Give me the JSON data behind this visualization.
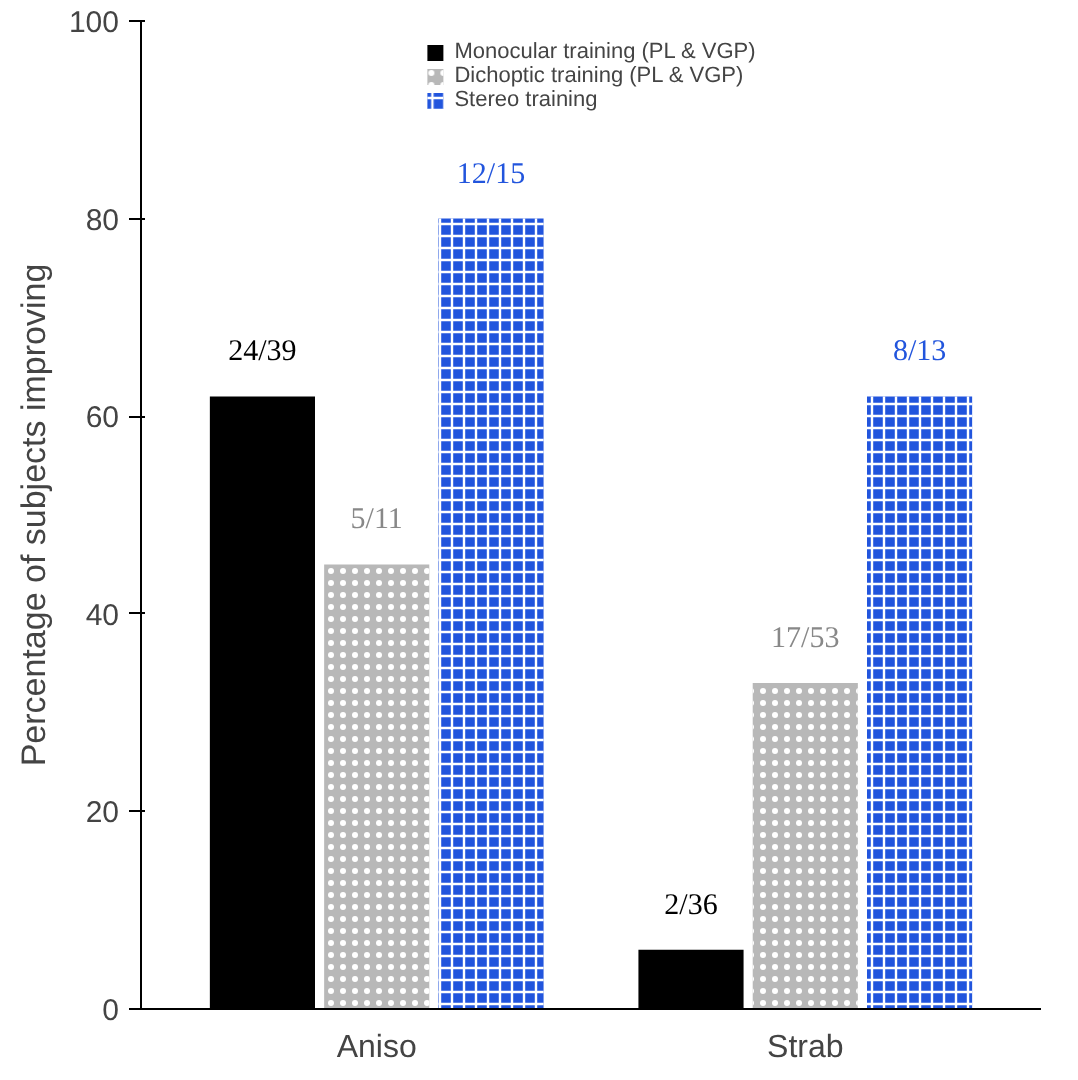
{
  "chart_data": {
    "type": "bar",
    "ylabel": "Percentage of subjects improving",
    "categories": [
      "Aniso",
      "Strab"
    ],
    "series": [
      {
        "name": "Monocular training (PL & VGP)",
        "color": "#000000",
        "values": [
          62,
          6
        ],
        "value_labels": [
          "24/39",
          "2/36"
        ]
      },
      {
        "name": "Dichoptic training (PL & VGP)",
        "color": "#b8b8b8",
        "values": [
          45,
          33
        ],
        "value_labels": [
          "5/11",
          "17/53"
        ]
      },
      {
        "name": "Stereo training",
        "color": "#2255dd",
        "values": [
          80,
          62
        ],
        "value_labels": [
          "12/15",
          "8/13"
        ]
      }
    ],
    "ylim": [
      0,
      100
    ],
    "yticks": [
      0,
      20,
      40,
      60,
      80,
      100
    ],
    "grid": false,
    "legend": "top"
  }
}
